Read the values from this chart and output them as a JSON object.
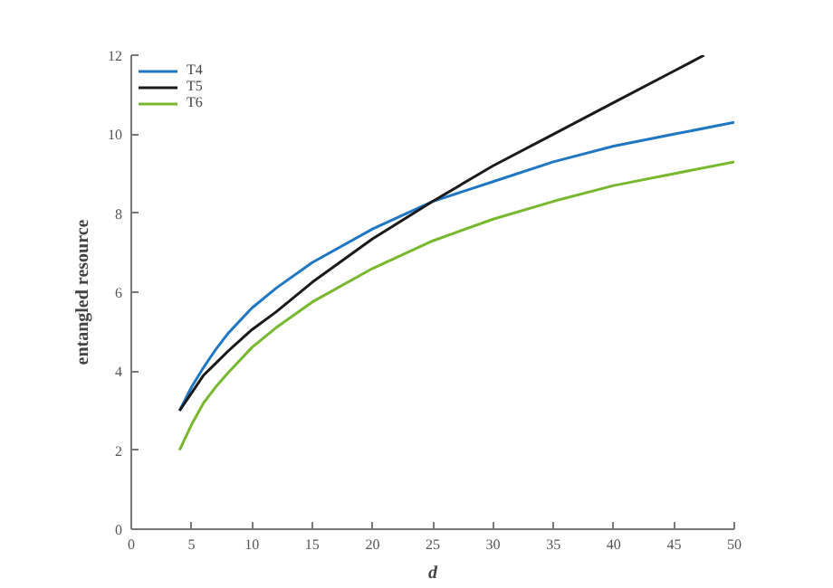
{
  "chart_data": {
    "type": "line",
    "xlabel": "d",
    "ylabel": "entangled resource",
    "x": [
      4,
      5,
      6,
      7,
      8,
      10,
      12,
      15,
      20,
      25,
      30,
      35,
      40,
      45,
      50
    ],
    "series": [
      {
        "name": "T4",
        "color": "#1f77c4",
        "values": [
          3.0,
          3.6,
          4.1,
          4.55,
          4.95,
          5.6,
          6.1,
          6.75,
          7.6,
          8.3,
          8.8,
          9.3,
          9.7,
          10.0,
          10.3
        ]
      },
      {
        "name": "T5",
        "color": "#1a1a1a",
        "x": [
          4,
          5,
          6,
          7,
          8,
          10,
          12,
          15,
          20,
          25,
          30,
          35,
          40,
          45,
          47.5
        ],
        "values": [
          3.0,
          3.45,
          3.9,
          4.2,
          4.5,
          5.05,
          5.5,
          6.25,
          7.35,
          8.3,
          9.2,
          10.0,
          10.8,
          11.6,
          12.0
        ]
      },
      {
        "name": "T6",
        "color": "#77b82e",
        "values": [
          2.0,
          2.65,
          3.2,
          3.6,
          3.95,
          4.6,
          5.1,
          5.75,
          6.6,
          7.3,
          7.85,
          8.3,
          8.7,
          9.0,
          9.3
        ]
      }
    ],
    "xlim": [
      0,
      50
    ],
    "ylim": [
      0,
      12
    ],
    "xticks": [
      0,
      5,
      10,
      15,
      20,
      25,
      30,
      35,
      40,
      45,
      50
    ],
    "yticks": [
      0,
      2,
      4,
      6,
      8,
      10,
      12
    ],
    "grid": false,
    "legend": "top left",
    "line_style": "solid",
    "marker": "none"
  }
}
